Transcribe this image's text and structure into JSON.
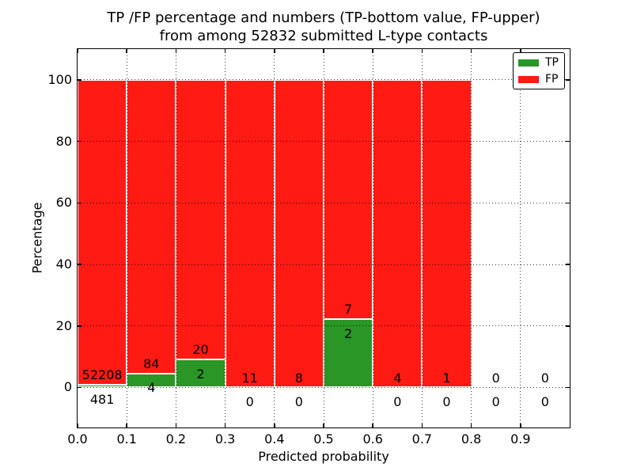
{
  "title": {
    "line1": "TP /FP percentage and numbers (TP-bottom value, FP-upper)",
    "line2": "from among 52832 submitted L-type contacts"
  },
  "axes": {
    "xlabel": "Predicted probability",
    "ylabel": "Percentage"
  },
  "legend": {
    "items": [
      {
        "label": "TP",
        "color": "#2a9626"
      },
      {
        "label": "FP",
        "color": "#ff1a14"
      }
    ]
  },
  "chart_data": {
    "type": "bar",
    "stacked": true,
    "title": "TP /FP percentage and numbers (TP-bottom value, FP-upper) from among 52832 submitted L-type contacts",
    "total_submitted": 52832,
    "xlabel": "Predicted probability",
    "ylabel": "Percentage",
    "xlim": [
      0.0,
      1.0
    ],
    "ylim": [
      -13,
      110
    ],
    "grid": true,
    "legend_position": "upper right",
    "bin_width": 0.1,
    "x_tick_labels": [
      "0.0",
      "0.1",
      "0.2",
      "0.3",
      "0.4",
      "0.5",
      "0.6",
      "0.7",
      "0.8",
      "0.9"
    ],
    "y_ticks": [
      0,
      20,
      40,
      60,
      80,
      100
    ],
    "series": [
      {
        "name": "TP",
        "color": "#2a9626"
      },
      {
        "name": "FP",
        "color": "#ff1a14"
      }
    ],
    "bins": [
      {
        "x_start": 0.0,
        "tp_count": 481,
        "fp_count": 52208,
        "tp_percent": 0.91,
        "fp_percent": 99.09,
        "bar": true
      },
      {
        "x_start": 0.1,
        "tp_count": 4,
        "fp_count": 84,
        "tp_percent": 4.55,
        "fp_percent": 95.45,
        "bar": true
      },
      {
        "x_start": 0.2,
        "tp_count": 2,
        "fp_count": 20,
        "tp_percent": 9.09,
        "fp_percent": 90.91,
        "bar": true
      },
      {
        "x_start": 0.3,
        "tp_count": 0,
        "fp_count": 11,
        "tp_percent": 0,
        "fp_percent": 100,
        "bar": true
      },
      {
        "x_start": 0.4,
        "tp_count": 0,
        "fp_count": 8,
        "tp_percent": 0,
        "fp_percent": 100,
        "bar": true
      },
      {
        "x_start": 0.5,
        "tp_count": 2,
        "fp_count": 7,
        "tp_percent": 22.22,
        "fp_percent": 77.78,
        "bar": true
      },
      {
        "x_start": 0.6,
        "tp_count": 0,
        "fp_count": 4,
        "tp_percent": 0,
        "fp_percent": 100,
        "bar": true
      },
      {
        "x_start": 0.7,
        "tp_count": 0,
        "fp_count": 1,
        "tp_percent": 0,
        "fp_percent": 100,
        "bar": true
      },
      {
        "x_start": 0.8,
        "tp_count": 0,
        "fp_count": 0,
        "tp_percent": 0,
        "fp_percent": 0,
        "bar": false
      },
      {
        "x_start": 0.9,
        "tp_count": 0,
        "fp_count": 0,
        "tp_percent": 0,
        "fp_percent": 0,
        "bar": false
      }
    ]
  }
}
